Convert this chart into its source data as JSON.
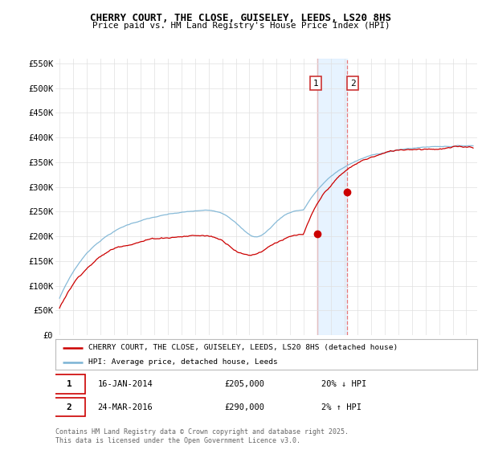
{
  "title_line1": "CHERRY COURT, THE CLOSE, GUISELEY, LEEDS, LS20 8HS",
  "title_line2": "Price paid vs. HM Land Registry's House Price Index (HPI)",
  "ylim": [
    0,
    560000
  ],
  "yticks": [
    0,
    50000,
    100000,
    150000,
    200000,
    250000,
    300000,
    350000,
    400000,
    450000,
    500000,
    550000
  ],
  "ytick_labels": [
    "£0",
    "£50K",
    "£100K",
    "£150K",
    "£200K",
    "£250K",
    "£300K",
    "£350K",
    "£400K",
    "£450K",
    "£500K",
    "£550K"
  ],
  "hpi_color": "#7ab3d4",
  "price_color": "#cc0000",
  "marker_color": "#cc0000",
  "vline1_color": "#e87878",
  "vline2_color": "#e87878",
  "shade_color": "#ddeeff",
  "legend_label_price": "CHERRY COURT, THE CLOSE, GUISELEY, LEEDS, LS20 8HS (detached house)",
  "legend_label_hpi": "HPI: Average price, detached house, Leeds",
  "transaction1_date": "16-JAN-2014",
  "transaction1_price": 205000,
  "transaction1_hpi_pct": "20% ↓ HPI",
  "transaction1_label": "1",
  "transaction2_date": "24-MAR-2016",
  "transaction2_price": 290000,
  "transaction2_hpi_pct": "2% ↑ HPI",
  "transaction2_label": "2",
  "footer": "Contains HM Land Registry data © Crown copyright and database right 2025.\nThis data is licensed under the Open Government Licence v3.0.",
  "background_color": "#ffffff",
  "grid_color": "#e0e0e0",
  "t1_year": 2014.04,
  "t2_year": 2016.23
}
